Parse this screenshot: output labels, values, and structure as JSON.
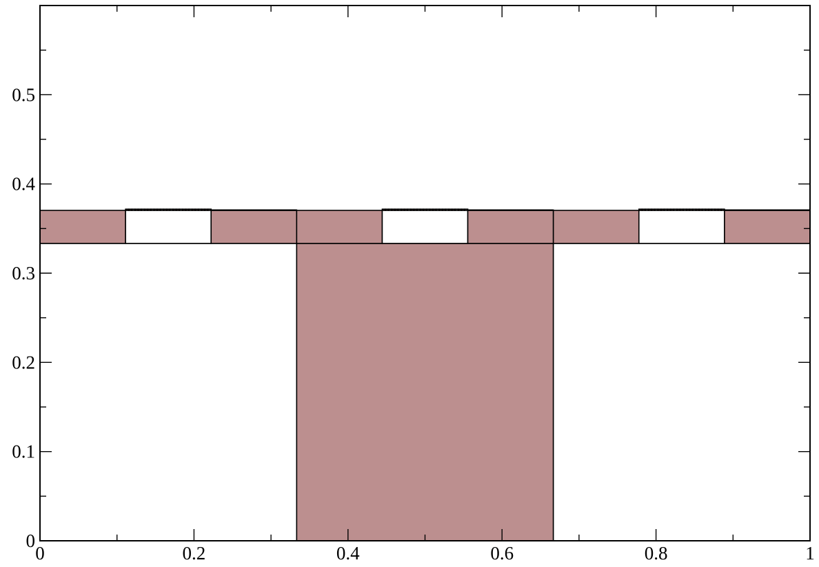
{
  "chart_data": {
    "type": "tiling",
    "title": "",
    "xlabel": "",
    "ylabel": "",
    "xlim": [
      0,
      1
    ],
    "ylim": [
      0,
      0.6
    ],
    "xticks": [
      "0",
      "0.2",
      "0.4",
      "0.6",
      "0.8",
      "1"
    ],
    "yticks": [
      "0",
      "0.1",
      "0.2",
      "0.3",
      "0.4",
      "0.5"
    ],
    "x_minor_step": 0.1,
    "y_minor_step": 0.05,
    "grid": false,
    "colors": {
      "filled": "#bc8f8f",
      "empty": "#ffffff",
      "edge": "#000000"
    },
    "fill_pattern_by_level": [
      "010",
      "101",
      "011",
      "110",
      "011",
      "100",
      "011",
      "010",
      "111"
    ],
    "row_extra_levels": [
      3,
      1,
      2
    ],
    "depth": 6,
    "outer_height": 0.5
  }
}
